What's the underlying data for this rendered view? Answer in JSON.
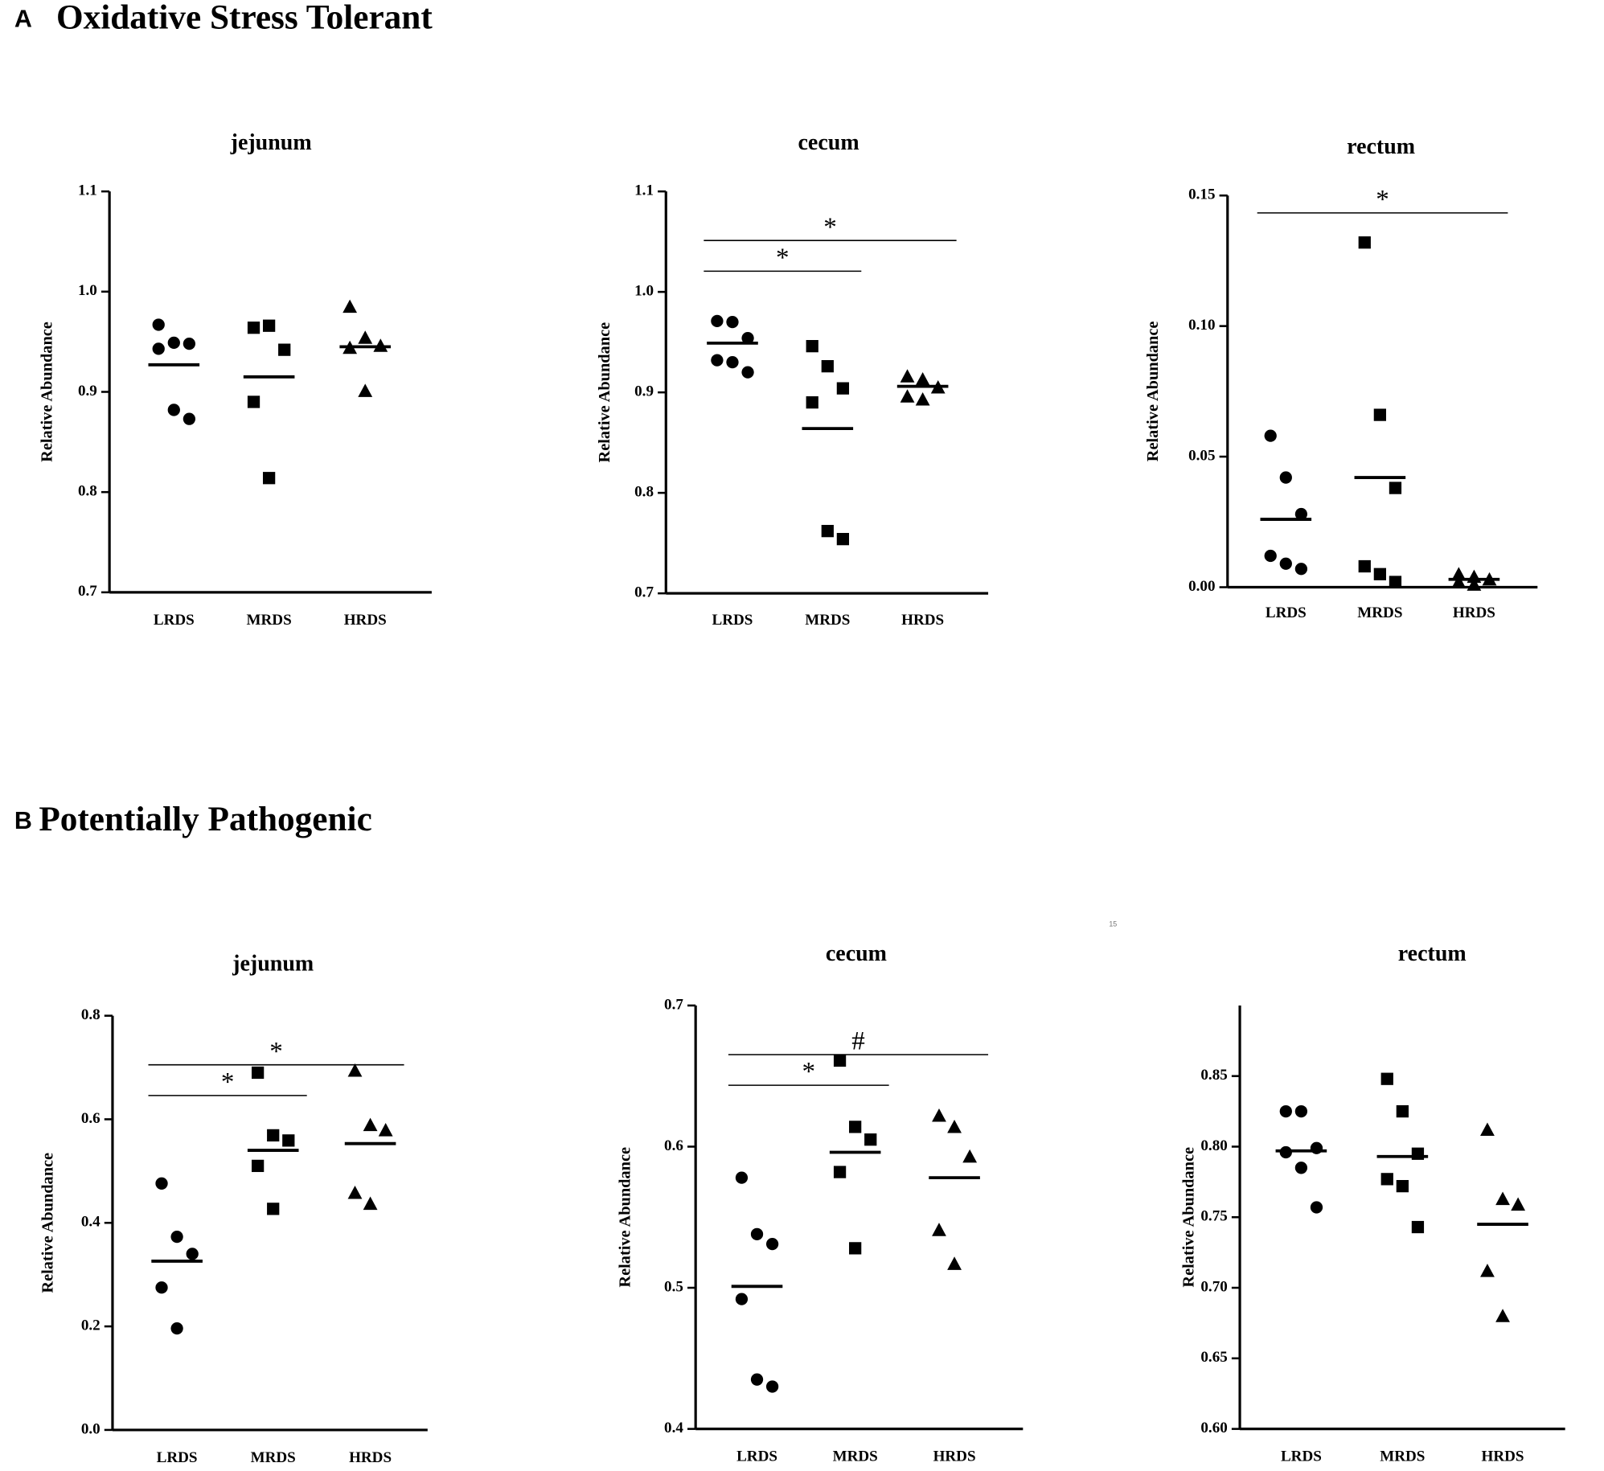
{
  "panel_a": {
    "letter": "A",
    "title": "Oxidative Stress Tolerant"
  },
  "panel_b": {
    "letter": "B",
    "title": "Potentially Pathogenic"
  },
  "page_number": "15",
  "chart_data": [
    {
      "type": "dot",
      "title": "jejunum",
      "ylabel": "Relative Abundance",
      "categories": [
        "LRDS",
        "MRDS",
        "HRDS"
      ],
      "markers": [
        "circle",
        "square",
        "triangle"
      ],
      "points": [
        [
          0.967,
          0.949,
          0.948,
          0.943,
          0.882,
          0.873
        ],
        [
          0.964,
          0.966,
          0.942,
          0.89,
          0.814
        ],
        [
          0.985,
          0.954,
          0.946,
          0.944,
          0.901
        ]
      ],
      "means": [
        0.927,
        0.915,
        0.945
      ],
      "ylim": [
        0.7,
        1.1
      ],
      "yticks": [
        0.7,
        0.8,
        0.9,
        {
          "value": 1,
          "label": "1.0"
        },
        1.1
      ],
      "brackets": []
    },
    {
      "type": "dot",
      "title": "cecum",
      "ylabel": "Relative Abundance",
      "categories": [
        "LRDS",
        "MRDS",
        "HRDS"
      ],
      "markers": [
        "circle",
        "square",
        "triangle"
      ],
      "points": [
        [
          0.971,
          0.97,
          0.954,
          0.932,
          0.93,
          0.92
        ],
        [
          0.946,
          0.926,
          0.904,
          0.89,
          0.762,
          0.754
        ],
        [
          0.916,
          0.913,
          0.905,
          0.896,
          0.893
        ]
      ],
      "means": [
        0.949,
        0.864,
        0.906
      ],
      "ylim": [
        0.7,
        1.1
      ],
      "yticks": [
        0.7,
        0.8,
        0.9,
        {
          "value": 1,
          "label": "1.0"
        },
        1.1
      ],
      "brackets": [
        {
          "from": 0,
          "to": 2,
          "label": "*"
        },
        {
          "from": 0,
          "to": 1,
          "label": "*"
        }
      ]
    },
    {
      "type": "dot",
      "title": "rectum",
      "ylabel": "Relative Abundance",
      "categories": [
        "LRDS",
        "MRDS",
        "HRDS"
      ],
      "markers": [
        "circle",
        "square",
        "triangle"
      ],
      "points": [
        [
          0.058,
          0.042,
          0.028,
          0.012,
          0.009,
          0.007
        ],
        [
          0.132,
          0.066,
          0.038,
          0.008,
          0.005,
          0.002
        ],
        [
          0.005,
          0.004,
          0.003,
          0.002,
          0.001
        ]
      ],
      "means": [
        0.026,
        0.042,
        0.003
      ],
      "ylim": [
        0,
        0.15
      ],
      "yticks": [
        {
          "value": 0,
          "label": "0.00"
        },
        0.05,
        {
          "value": 0.1,
          "label": "0.10"
        },
        0.15
      ],
      "brackets": [
        {
          "from": 0,
          "to": 2,
          "label": "*"
        }
      ]
    },
    {
      "type": "dot",
      "title": "jejunum",
      "ylabel": "Relative Abundance",
      "categories": [
        "LRDS",
        "MRDS",
        "HRDS"
      ],
      "markers": [
        "circle",
        "square",
        "triangle"
      ],
      "points": [
        [
          0.476,
          0.373,
          0.34,
          0.275,
          0.196
        ],
        [
          0.69,
          0.569,
          0.559,
          0.51,
          0.427
        ],
        [
          0.694,
          0.589,
          0.579,
          0.458,
          0.437
        ]
      ],
      "means": [
        0.326,
        0.54,
        0.553
      ],
      "ylim": [
        0,
        0.8
      ],
      "yticks": [
        {
          "value": 0,
          "label": "0.0"
        },
        0.2,
        0.4,
        0.6,
        0.8
      ],
      "brackets": [
        {
          "from": 0,
          "to": 2,
          "label": "*"
        },
        {
          "from": 0,
          "to": 1,
          "label": "*"
        }
      ]
    },
    {
      "type": "dot",
      "title": "cecum",
      "ylabel": "Relative Abundance",
      "categories": [
        "LRDS",
        "MRDS",
        "HRDS"
      ],
      "markers": [
        "circle",
        "square",
        "triangle"
      ],
      "points": [
        [
          0.578,
          0.538,
          0.531,
          0.492,
          0.435,
          0.43
        ],
        [
          0.661,
          0.614,
          0.605,
          0.582,
          0.528
        ],
        [
          0.622,
          0.614,
          0.593,
          0.541,
          0.517
        ]
      ],
      "means": [
        0.501,
        0.596,
        0.578
      ],
      "ylim": [
        0.4,
        0.7
      ],
      "yticks": [
        0.4,
        0.5,
        0.6,
        0.7
      ],
      "brackets": [
        {
          "from": 0,
          "to": 2,
          "label": "#"
        },
        {
          "from": 0,
          "to": 1,
          "label": "*"
        }
      ]
    },
    {
      "type": "dot",
      "title": "rectum",
      "ylabel": "Relative Abundance",
      "categories": [
        "LRDS",
        "MRDS",
        "HRDS"
      ],
      "markers": [
        "circle",
        "square",
        "triangle"
      ],
      "points": [
        [
          0.825,
          0.825,
          0.799,
          0.796,
          0.785,
          0.757
        ],
        [
          0.848,
          0.825,
          0.795,
          0.777,
          0.772,
          0.743
        ],
        [
          0.812,
          0.763,
          0.759,
          0.712,
          0.68
        ]
      ],
      "means": [
        0.797,
        0.793,
        0.745
      ],
      "ylim": [
        0.6,
        0.9
      ],
      "yticks": [
        {
          "value": 0.6,
          "label": "0.60"
        },
        0.65,
        {
          "value": 0.7,
          "label": "0.70"
        },
        0.75,
        {
          "value": 0.8,
          "label": "0.80"
        },
        0.85
      ],
      "brackets": []
    }
  ]
}
